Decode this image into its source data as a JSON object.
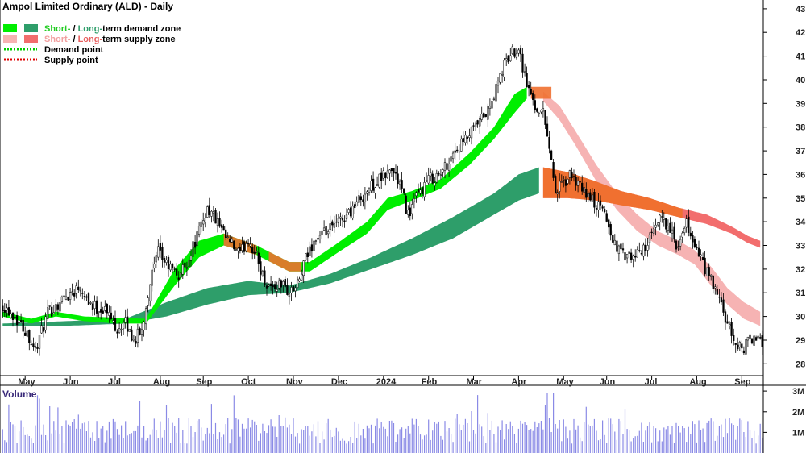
{
  "chart_data": {
    "type": "candlestick",
    "title": "Ampol Limited Ordinary (ALD) - Daily",
    "legend": {
      "placement": "top-left",
      "items": [
        {
          "prefix": "Short-",
          "sep": " / ",
          "mid": "Long-",
          "suffix": "term demand zone",
          "colors": [
            "#00ee00",
            "#2e9e6a"
          ],
          "prefix_color": "#22cc22",
          "mid_color": "#2e9e6a"
        },
        {
          "prefix": "Short-",
          "sep": " / ",
          "mid": "Long-",
          "suffix": "term supply zone",
          "colors": [
            "#f6b3b3",
            "#f26d6d"
          ],
          "prefix_color": "#f2a0a0",
          "mid_color": "#e86060"
        },
        {
          "text": "Demand point",
          "line_color": "#00cc00",
          "line_style": "dotted"
        },
        {
          "text": "Supply point",
          "line_color": "#dd0000",
          "line_style": "dotted"
        }
      ]
    },
    "x_tick_labels": [
      "May",
      "Jun",
      "Jul",
      "Aug",
      "Sep",
      "Oct",
      "Nov",
      "Dec",
      "2024",
      "Feb",
      "Mar",
      "Apr",
      "May",
      "Jun",
      "Jul",
      "Aug",
      "Sep"
    ],
    "y_axis": {
      "min": 27.5,
      "max": 43.2,
      "ticks": [
        28,
        29,
        30,
        31,
        32,
        33,
        34,
        35,
        36,
        37,
        38,
        39,
        40,
        41,
        42,
        43
      ]
    },
    "close_anchors": [
      [
        0,
        30.5
      ],
      [
        6,
        30.0
      ],
      [
        12,
        29.3
      ],
      [
        16,
        28.6
      ],
      [
        22,
        30.1
      ],
      [
        30,
        30.8
      ],
      [
        38,
        31.3
      ],
      [
        44,
        30.4
      ],
      [
        50,
        30.3
      ],
      [
        56,
        29.5
      ],
      [
        60,
        29.7
      ],
      [
        64,
        29.0
      ],
      [
        68,
        29.4
      ],
      [
        72,
        31.5
      ],
      [
        76,
        32.7
      ],
      [
        80,
        32.2
      ],
      [
        86,
        31.7
      ],
      [
        90,
        32.3
      ],
      [
        96,
        33.6
      ],
      [
        100,
        34.6
      ],
      [
        104,
        34.1
      ],
      [
        108,
        33.4
      ],
      [
        112,
        33.0
      ],
      [
        116,
        32.6
      ],
      [
        120,
        33.3
      ],
      [
        124,
        32.5
      ],
      [
        128,
        31.5
      ],
      [
        132,
        31.2
      ],
      [
        136,
        31.4
      ],
      [
        140,
        31.0
      ],
      [
        144,
        31.3
      ],
      [
        148,
        32.4
      ],
      [
        152,
        33.2
      ],
      [
        156,
        33.4
      ],
      [
        162,
        33.8
      ],
      [
        168,
        34.3
      ],
      [
        174,
        34.9
      ],
      [
        180,
        35.5
      ],
      [
        186,
        35.9
      ],
      [
        190,
        36.2
      ],
      [
        194,
        35.6
      ],
      [
        198,
        34.3
      ],
      [
        202,
        35.0
      ],
      [
        208,
        35.8
      ],
      [
        214,
        36.0
      ],
      [
        220,
        36.9
      ],
      [
        226,
        37.4
      ],
      [
        232,
        38.1
      ],
      [
        238,
        38.8
      ],
      [
        244,
        40.4
      ],
      [
        248,
        41.1
      ],
      [
        252,
        41.4
      ],
      [
        256,
        39.8
      ],
      [
        260,
        38.9
      ],
      [
        264,
        38.6
      ],
      [
        266,
        37.8
      ],
      [
        270,
        35.3
      ],
      [
        274,
        35.6
      ],
      [
        278,
        36.0
      ],
      [
        282,
        35.4
      ],
      [
        286,
        35.1
      ],
      [
        290,
        34.7
      ],
      [
        294,
        34.4
      ],
      [
        298,
        33.2
      ],
      [
        302,
        32.7
      ],
      [
        306,
        32.4
      ],
      [
        310,
        32.6
      ],
      [
        314,
        33.0
      ],
      [
        318,
        33.5
      ],
      [
        322,
        34.3
      ],
      [
        326,
        33.6
      ],
      [
        330,
        32.8
      ],
      [
        334,
        33.9
      ],
      [
        338,
        33.0
      ],
      [
        342,
        32.2
      ],
      [
        346,
        31.5
      ],
      [
        350,
        30.7
      ],
      [
        354,
        29.6
      ],
      [
        358,
        28.8
      ],
      [
        362,
        28.7
      ],
      [
        366,
        29.1
      ],
      [
        370,
        28.9
      ]
    ],
    "short_term_demand_zone": {
      "color": "#00ee00",
      "upper": [
        [
          0,
          30.2
        ],
        [
          14,
          29.9
        ],
        [
          26,
          30.2
        ],
        [
          40,
          30.0
        ],
        [
          56,
          29.95
        ],
        [
          70,
          29.9
        ],
        [
          84,
          32.0
        ],
        [
          96,
          33.2
        ],
        [
          108,
          33.5
        ],
        [
          124,
          33.0
        ],
        [
          140,
          32.3
        ],
        [
          150,
          32.3
        ],
        [
          162,
          33.0
        ],
        [
          178,
          34.0
        ],
        [
          188,
          35.0
        ],
        [
          200,
          35.3
        ],
        [
          214,
          35.8
        ],
        [
          228,
          36.9
        ],
        [
          240,
          38.0
        ],
        [
          250,
          39.4
        ],
        [
          256,
          39.7
        ]
      ],
      "lower": [
        [
          0,
          30.0
        ],
        [
          14,
          29.7
        ],
        [
          26,
          30.0
        ],
        [
          40,
          29.8
        ],
        [
          56,
          29.7
        ],
        [
          70,
          29.7
        ],
        [
          84,
          31.3
        ],
        [
          96,
          32.5
        ],
        [
          108,
          33.0
        ],
        [
          124,
          32.6
        ],
        [
          140,
          31.9
        ],
        [
          150,
          31.9
        ],
        [
          162,
          32.6
        ],
        [
          178,
          33.5
        ],
        [
          188,
          34.5
        ],
        [
          200,
          34.9
        ],
        [
          214,
          35.4
        ],
        [
          228,
          36.4
        ],
        [
          240,
          37.5
        ],
        [
          250,
          38.6
        ],
        [
          256,
          39.2
        ]
      ]
    },
    "long_term_demand_zone": {
      "color": "#2e9e6a",
      "upper": [
        [
          0,
          29.7
        ],
        [
          30,
          29.8
        ],
        [
          60,
          29.9
        ],
        [
          80,
          30.6
        ],
        [
          100,
          31.2
        ],
        [
          120,
          31.5
        ],
        [
          140,
          31.3
        ],
        [
          160,
          31.8
        ],
        [
          180,
          32.5
        ],
        [
          200,
          33.3
        ],
        [
          220,
          34.2
        ],
        [
          240,
          35.2
        ],
        [
          252,
          36.0
        ],
        [
          262,
          36.3
        ]
      ],
      "lower": [
        [
          0,
          29.6
        ],
        [
          30,
          29.6
        ],
        [
          60,
          29.7
        ],
        [
          80,
          30.0
        ],
        [
          100,
          30.5
        ],
        [
          120,
          30.9
        ],
        [
          140,
          31.0
        ],
        [
          160,
          31.4
        ],
        [
          180,
          32.0
        ],
        [
          200,
          32.6
        ],
        [
          220,
          33.3
        ],
        [
          240,
          34.3
        ],
        [
          252,
          34.9
        ],
        [
          262,
          35.2
        ]
      ]
    },
    "short_term_supply_zone": {
      "color": "#f6b3b3",
      "upper": [
        [
          264,
          39.5
        ],
        [
          272,
          38.9
        ],
        [
          280,
          37.8
        ],
        [
          290,
          36.4
        ],
        [
          300,
          35.2
        ],
        [
          310,
          34.3
        ],
        [
          320,
          33.6
        ],
        [
          330,
          33.2
        ],
        [
          338,
          32.8
        ],
        [
          346,
          32.1
        ],
        [
          354,
          31.2
        ],
        [
          362,
          30.6
        ],
        [
          370,
          30.2
        ]
      ],
      "lower": [
        [
          264,
          39.1
        ],
        [
          272,
          38.3
        ],
        [
          280,
          37.2
        ],
        [
          290,
          35.7
        ],
        [
          300,
          34.5
        ],
        [
          310,
          33.6
        ],
        [
          320,
          33.0
        ],
        [
          330,
          32.6
        ],
        [
          338,
          32.2
        ],
        [
          346,
          31.3
        ],
        [
          354,
          30.5
        ],
        [
          362,
          29.9
        ],
        [
          370,
          29.6
        ]
      ]
    },
    "long_term_supply_zone": {
      "color": "#f26d6d",
      "upper": [
        [
          264,
          36.3
        ],
        [
          276,
          36.1
        ],
        [
          290,
          35.7
        ],
        [
          302,
          35.3
        ],
        [
          316,
          35.0
        ],
        [
          330,
          34.6
        ],
        [
          344,
          34.3
        ],
        [
          356,
          33.8
        ],
        [
          364,
          33.4
        ],
        [
          370,
          33.2
        ]
      ],
      "lower": [
        [
          264,
          35.0
        ],
        [
          276,
          35.0
        ],
        [
          290,
          34.9
        ],
        [
          302,
          34.7
        ],
        [
          316,
          34.5
        ],
        [
          330,
          34.2
        ],
        [
          344,
          33.9
        ],
        [
          356,
          33.5
        ],
        [
          364,
          33.1
        ],
        [
          370,
          32.9
        ]
      ]
    },
    "overlap_color": "#f07030",
    "volume": {
      "label": "Volume",
      "ticks": [
        "1M",
        "2M",
        "3M"
      ],
      "tick_values": [
        1,
        2,
        3
      ],
      "max": 3.2,
      "color": "#8a8ae6"
    }
  }
}
